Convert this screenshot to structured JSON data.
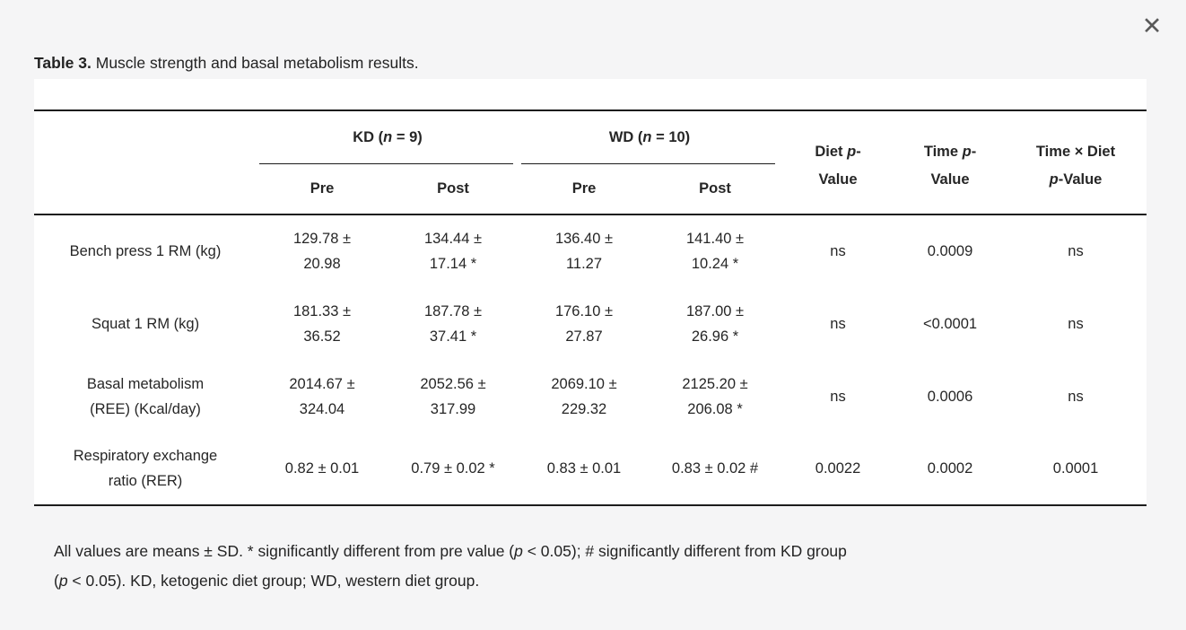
{
  "page": {
    "background": "#f5f5f6",
    "panel_background": "#ffffff",
    "rule_color": "#1c1c1c",
    "close_glyph": "✕"
  },
  "caption": {
    "label": "Table 3.",
    "text": " Muscle strength and basal metabolism results."
  },
  "table": {
    "group_headers": [
      {
        "pre": "KD (",
        "italic": "n",
        "post": " = 9)"
      },
      {
        "pre": "WD (",
        "italic": "n",
        "post": " = 10)"
      }
    ],
    "sub_headers": [
      "Pre",
      "Post",
      "Pre",
      "Post"
    ],
    "stat_headers": [
      {
        "l1a": "Diet ",
        "l1i": "p",
        "l1b": "-",
        "l2i": "",
        "l2b": "Value"
      },
      {
        "l1a": "Time ",
        "l1i": "p",
        "l1b": "-",
        "l2i": "",
        "l2b": "Value"
      },
      {
        "l1a": "Time × Diet",
        "l1i": "",
        "l1b": "",
        "l2i": "p",
        "l2b": "-Value"
      }
    ],
    "rows": [
      {
        "label_l1": "Bench press 1 RM (kg)",
        "label_l2": "",
        "cells": [
          {
            "l1": "129.78 ±",
            "l2": "20.98"
          },
          {
            "l1": "134.44 ±",
            "l2": "17.14 *"
          },
          {
            "l1": "136.40 ±",
            "l2": "11.27"
          },
          {
            "l1": "141.40 ±",
            "l2": "10.24 *"
          },
          {
            "l1": "ns",
            "l2": ""
          },
          {
            "l1": "0.0009",
            "l2": ""
          },
          {
            "l1": "ns",
            "l2": ""
          }
        ]
      },
      {
        "label_l1": "Squat 1 RM (kg)",
        "label_l2": "",
        "cells": [
          {
            "l1": "181.33 ±",
            "l2": "36.52"
          },
          {
            "l1": "187.78 ±",
            "l2": "37.41 *"
          },
          {
            "l1": "176.10 ±",
            "l2": "27.87"
          },
          {
            "l1": "187.00 ±",
            "l2": "26.96 *"
          },
          {
            "l1": "ns",
            "l2": ""
          },
          {
            "l1": "<0.0001",
            "l2": ""
          },
          {
            "l1": "ns",
            "l2": ""
          }
        ]
      },
      {
        "label_l1": "Basal metabolism",
        "label_l2": "(REE) (Kcal/day)",
        "cells": [
          {
            "l1": "2014.67 ±",
            "l2": "324.04"
          },
          {
            "l1": "2052.56 ±",
            "l2": "317.99"
          },
          {
            "l1": "2069.10 ±",
            "l2": "229.32"
          },
          {
            "l1": "2125.20 ±",
            "l2": "206.08 *"
          },
          {
            "l1": "ns",
            "l2": ""
          },
          {
            "l1": "0.0006",
            "l2": ""
          },
          {
            "l1": "ns",
            "l2": ""
          }
        ]
      },
      {
        "label_l1": "Respiratory exchange",
        "label_l2": "ratio (RER)",
        "cells": [
          {
            "l1": "0.82 ± 0.01",
            "l2": ""
          },
          {
            "l1": "0.79 ± 0.02 *",
            "l2": ""
          },
          {
            "l1": "0.83 ± 0.01",
            "l2": ""
          },
          {
            "l1": "0.83 ± 0.02 #",
            "l2": ""
          },
          {
            "l1": "0.0022",
            "l2": ""
          },
          {
            "l1": "0.0002",
            "l2": ""
          },
          {
            "l1": "0.0001",
            "l2": ""
          }
        ]
      }
    ]
  },
  "footnote": {
    "line1": {
      "a": "All values are means ± SD. * significantly different from pre value (",
      "i": "p",
      "b": " < 0.05); # significantly different from KD group"
    },
    "line2": {
      "a": "(",
      "i": "p",
      "b": " < 0.05). KD, ketogenic diet group; WD, western diet group."
    }
  }
}
